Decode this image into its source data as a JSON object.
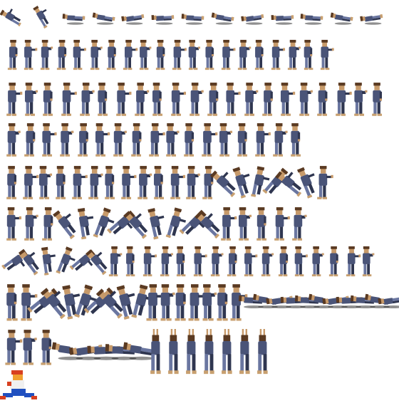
{
  "sheet": {
    "background": "#ffffff",
    "palette": {
      "jacket": "#4a5478",
      "jacket_shadow": "#2f3650",
      "pants": "#6a76a0",
      "skin": "#c79a6a",
      "hair": "#5a3a22",
      "shoe": "#c8a070",
      "ground_shadow": "#222222"
    },
    "rows": [
      {
        "id": "knockdown",
        "frames": 13
      },
      {
        "id": "walk",
        "frames": 20
      },
      {
        "id": "run",
        "frames": 21
      },
      {
        "id": "punch-combo",
        "frames": 17
      },
      {
        "id": "guard-and-jump",
        "frames": 20
      },
      {
        "id": "kick-attacks",
        "frames": 17
      },
      {
        "id": "jump-kick-and-idle",
        "frames": 22
      },
      {
        "id": "special-throw",
        "frames": 28
      },
      {
        "id": "fall-and-float",
        "frames": 15
      }
    ],
    "special_icon": {
      "name": "character-portrait",
      "colors": [
        "#d84020",
        "#f0f0f0",
        "#2050c0",
        "#f0a030"
      ]
    }
  }
}
